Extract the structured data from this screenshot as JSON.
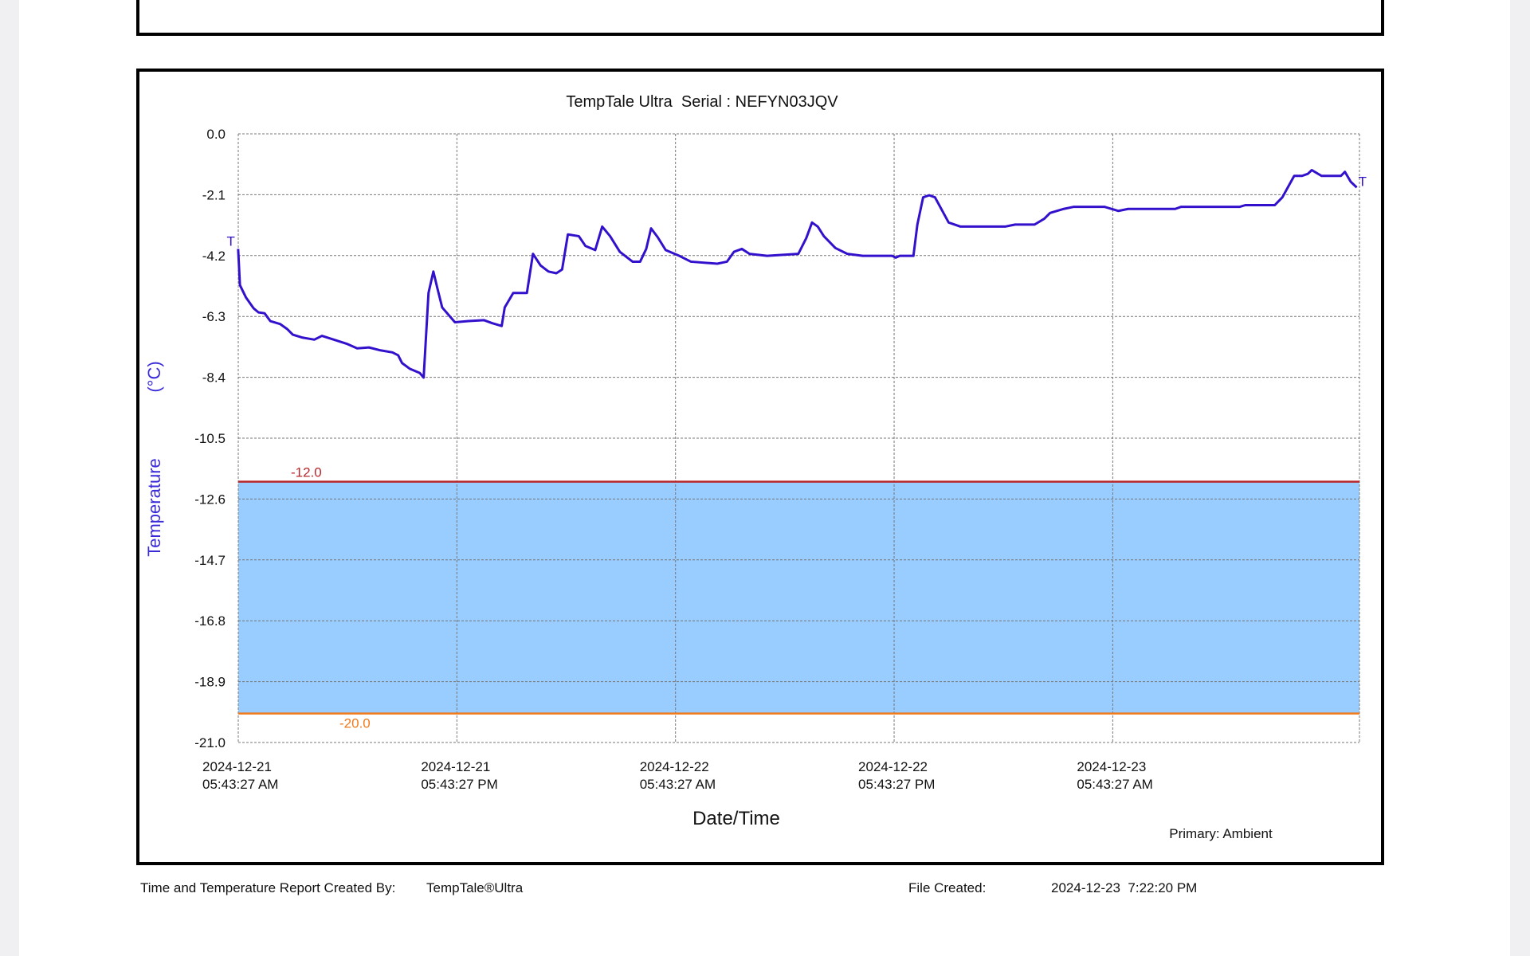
{
  "chart_data": {
    "type": "line",
    "title": "TempTale Ultra  Serial : NEFYN03JQV",
    "y_label": "Temperature",
    "y_unit": "(°C)",
    "x_label": "Date/Time",
    "note": "Primary: Ambient",
    "start_marker": "T",
    "end_marker": "T",
    "color": "#3311cc",
    "grid": true,
    "band_color": "#99ccff",
    "limits": [
      {
        "value": -12,
        "label": "-12.0",
        "color": "#b8272c"
      },
      {
        "value": -20,
        "label": "-20.0",
        "color": "#f07a1a"
      }
    ],
    "ylim": [
      -21,
      0
    ],
    "yticks": [
      {
        "value": 0,
        "label": "0.0"
      },
      -2.1,
      -4.2,
      -6.3,
      -8.4,
      -10.5,
      -12.6,
      -14.7,
      -16.8,
      -18.9,
      {
        "value": -21,
        "label": "-21.0"
      }
    ],
    "xlim": [
      "2024-12-21T05:43:27",
      "2024-12-23T19:16:00"
    ],
    "xticks": [
      {
        "value": "2024-12-21T05:43:27",
        "label": "2024-12-21\n05:43:27 AM"
      },
      {
        "value": "2024-12-21T17:43:27",
        "label": "2024-12-21\n05:43:27 PM"
      },
      {
        "value": "2024-12-22T05:43:27",
        "label": "2024-12-22\n05:43:27 AM"
      },
      {
        "value": "2024-12-22T17:43:27",
        "label": "2024-12-22\n05:43:27 PM"
      },
      {
        "value": "2024-12-23T05:43:27",
        "label": "2024-12-23\n05:43:27 AM"
      }
    ],
    "x": [
      "2024-12-21T05:43",
      "2024-12-21T05:49",
      "2024-12-21T06:09",
      "2024-12-21T06:34",
      "2024-12-21T06:50",
      "2024-12-21T07:10",
      "2024-12-21T07:29",
      "2024-12-21T08:01",
      "2024-12-21T08:24",
      "2024-12-21T08:43",
      "2024-12-21T09:15",
      "2024-12-21T09:54",
      "2024-12-21T10:19",
      "2024-12-21T10:58",
      "2024-12-21T11:40",
      "2024-12-21T12:15",
      "2024-12-21T12:54",
      "2024-12-21T13:32",
      "2024-12-21T14:11",
      "2024-12-21T14:30",
      "2024-12-21T14:43",
      "2024-12-21T15:09",
      "2024-12-21T15:41",
      "2024-12-21T15:54",
      "2024-12-21T16:10",
      "2024-12-21T16:26",
      "2024-12-21T16:39",
      "2024-12-21T16:55",
      "2024-12-21T17:37",
      "2024-12-21T18:22",
      "2024-12-21T19:13",
      "2024-12-21T19:39",
      "2024-12-21T20:11",
      "2024-12-21T20:21",
      "2024-12-21T20:49",
      "2024-12-21T21:34",
      "2024-12-21T21:54",
      "2024-12-21T22:19",
      "2024-12-21T22:45",
      "2024-12-21T23:11",
      "2024-12-21T23:30",
      "2024-12-21T23:49",
      "2024-12-22T00:25",
      "2024-12-22T00:47",
      "2024-12-22T01:19",
      "2024-12-22T01:42",
      "2024-12-22T02:08",
      "2024-12-22T02:40",
      "2024-12-22T03:22",
      "2024-12-22T03:47",
      "2024-12-22T04:07",
      "2024-12-22T04:23",
      "2024-12-22T04:45",
      "2024-12-22T05:11",
      "2024-12-22T05:56",
      "2024-12-22T06:34",
      "2024-12-22T08:01",
      "2024-12-22T08:33",
      "2024-12-22T08:56",
      "2024-12-22T09:22",
      "2024-12-22T09:47",
      "2024-12-22T10:45",
      "2024-12-22T12:28",
      "2024-12-22T12:54",
      "2024-12-22T13:13",
      "2024-12-22T13:32",
      "2024-12-22T13:52",
      "2024-12-22T14:30",
      "2024-12-22T15:09",
      "2024-12-22T16:00",
      "2024-12-22T17:37",
      "2024-12-22T17:49",
      "2024-12-22T18:02",
      "2024-12-22T18:47",
      "2024-12-22T19:00",
      "2024-12-22T19:19",
      "2024-12-22T19:39",
      "2024-12-22T19:58",
      "2024-12-22T20:43",
      "2024-12-22T21:22",
      "2024-12-22T23:49",
      "2024-12-23T00:22",
      "2024-12-23T01:26",
      "2024-12-23T01:58",
      "2024-12-23T02:17",
      "2024-12-23T03:02",
      "2024-12-23T03:34",
      "2024-12-23T05:17",
      "2024-12-23T06:02",
      "2024-12-23T06:34",
      "2024-12-23T09:09",
      "2024-12-23T09:28",
      "2024-12-23T12:41",
      "2024-12-23T13:00",
      "2024-12-23T14:37",
      "2024-12-23T15:02",
      "2024-12-23T15:41",
      "2024-12-23T16:07",
      "2024-12-23T16:26",
      "2024-12-23T16:39",
      "2024-12-23T17:11",
      "2024-12-23T18:15",
      "2024-12-23T18:28",
      "2024-12-23T18:47",
      "2024-12-23T19:07"
    ],
    "values": [
      -3.97,
      -5.22,
      -5.65,
      -6.02,
      -6.16,
      -6.19,
      -6.46,
      -6.56,
      -6.73,
      -6.93,
      -7.03,
      -7.1,
      -6.97,
      -7.1,
      -7.24,
      -7.4,
      -7.37,
      -7.47,
      -7.54,
      -7.64,
      -7.91,
      -8.11,
      -8.25,
      -8.41,
      -5.49,
      -4.75,
      -5.32,
      -5.99,
      -6.5,
      -6.46,
      -6.43,
      -6.53,
      -6.63,
      -5.99,
      -5.49,
      -5.49,
      -4.14,
      -4.54,
      -4.75,
      -4.81,
      -4.68,
      -3.47,
      -3.53,
      -3.87,
      -4.01,
      -3.2,
      -3.53,
      -4.07,
      -4.41,
      -4.41,
      -3.97,
      -3.26,
      -3.57,
      -4.01,
      -4.21,
      -4.41,
      -4.48,
      -4.41,
      -4.07,
      -3.97,
      -4.14,
      -4.21,
      -4.14,
      -3.6,
      -3.06,
      -3.2,
      -3.53,
      -3.94,
      -4.14,
      -4.21,
      -4.21,
      -4.27,
      -4.21,
      -4.21,
      -3.13,
      -2.19,
      -2.12,
      -2.19,
      -3.06,
      -3.2,
      -3.2,
      -3.13,
      -3.13,
      -2.93,
      -2.73,
      -2.59,
      -2.52,
      -2.52,
      -2.66,
      -2.59,
      -2.59,
      -2.52,
      -2.52,
      -2.46,
      -2.46,
      -2.19,
      -1.45,
      -1.45,
      -1.38,
      -1.25,
      -1.45,
      -1.45,
      -1.31,
      -1.65,
      -1.85
    ]
  },
  "footer": {
    "created_by_label": "Time and Temperature Report Created By:",
    "product": "TempTale®Ultra",
    "file_created_label": "File Created:",
    "file_created": "2024-12-23  7:22:20 PM"
  }
}
